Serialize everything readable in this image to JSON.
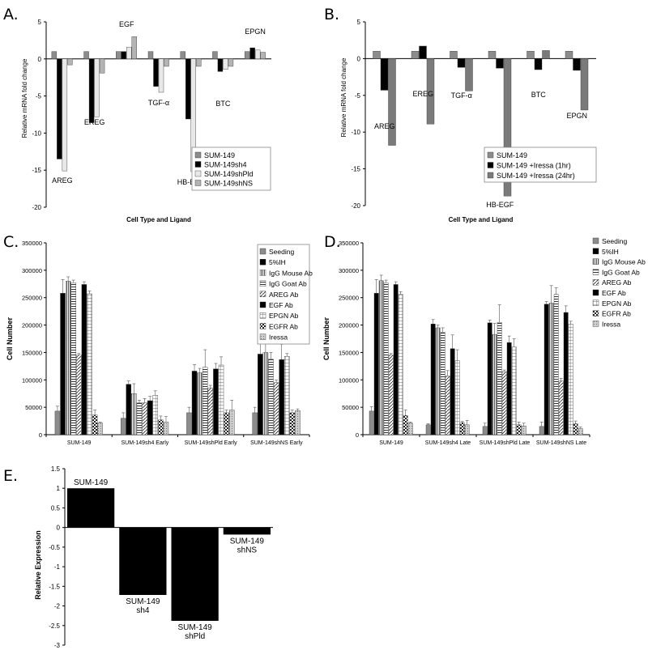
{
  "panels": {
    "A": {
      "letter": "A.",
      "chart_data": {
        "type": "bar",
        "ylabel": "Relative mRNA fold change",
        "xlabel": "Cell Type and Ligand",
        "ylim": [
          -20,
          5
        ],
        "yticks": [
          "5",
          "0",
          "-5",
          "-10",
          "-15",
          "-20"
        ],
        "categories": [
          "AREG",
          "EREG",
          "EGF",
          "TGF-α",
          "HB-EGF",
          "BTC",
          "EPGN"
        ],
        "series": [
          {
            "name": "SUM-149",
            "fill": "#8c8c8c",
            "values": [
              1,
              1,
              1,
              1,
              1,
              1,
              1
            ]
          },
          {
            "name": "SUM-149sh4",
            "fill": "#000000",
            "values": [
              -13.5,
              -8.6,
              1.0,
              -3.7,
              -8.1,
              -1.7,
              1.5
            ]
          },
          {
            "name": "SUM-149shPld",
            "fill": "#e8e8e8",
            "values": [
              -15.1,
              -7.8,
              1.6,
              -4.5,
              -15.2,
              -1.4,
              1.2
            ]
          },
          {
            "name": "SUM-149shNS",
            "fill": "#b4b4b4",
            "values": [
              -0.8,
              -1.9,
              3.0,
              -1.0,
              -1.0,
              -1.0,
              0.9
            ]
          }
        ],
        "category_labels": [
          "AREG",
          "EREG",
          "EGF",
          "TGF-α",
          "HB-EGF",
          "BTC",
          "EPGN"
        ],
        "legend": "bottom-right"
      }
    },
    "B": {
      "letter": "B.",
      "chart_data": {
        "type": "bar",
        "ylabel": "Relative mRNA fold change",
        "xlabel": "Cell Type and Ligand",
        "ylim": [
          -20,
          5
        ],
        "yticks": [
          "5",
          "0",
          "-5",
          "-10",
          "-15",
          "-20"
        ],
        "categories": [
          "AREG",
          "EREG",
          "TGF-α",
          "HB-EGF",
          "BTC",
          "EPGN"
        ],
        "series": [
          {
            "name": "SUM-149",
            "fill": "#8c8c8c",
            "values": [
              1,
              1,
              1,
              1,
              1,
              1
            ]
          },
          {
            "name": "SUM-149 +Iressa (1hr)",
            "fill": "#000000",
            "values": [
              -4.3,
              1.7,
              -1.2,
              -1.3,
              -1.5,
              -1.6
            ]
          },
          {
            "name": "SUM-149 +Iressa (24hr)",
            "fill": "#7a7a7a",
            "values": [
              -11.8,
              -8.9,
              -4.4,
              -18.7,
              1.1,
              -7.0
            ]
          }
        ],
        "category_labels": [
          "AREG",
          "EREG",
          "TGF-α",
          "HB-EGF",
          "BTC",
          "EPGN"
        ],
        "legend": "bottom-right"
      }
    },
    "C": {
      "letter": "C.",
      "chart_data": {
        "type": "bar",
        "ylabel": "Cell Number",
        "ylim": [
          0,
          350000
        ],
        "yticks": [
          "0",
          "50000",
          "100000",
          "150000",
          "200000",
          "250000",
          "300000",
          "350000"
        ],
        "categories": [
          "SUM-149",
          "SUM-149sh4 Early",
          "SUM-149shPld Early",
          "SUM-149shNS Early"
        ],
        "series": [
          {
            "name": "Seeding",
            "fill": "#8c8c8c",
            "values": [
              43000,
              30000,
              40000,
              40000
            ],
            "err": [
              9000,
              10000,
              10000,
              10000
            ]
          },
          {
            "name": "5%IH",
            "fill": "#000000",
            "values": [
              258000,
              92000,
              116000,
              147000
            ],
            "err": [
              25000,
              6000,
              12000,
              20000
            ]
          },
          {
            "name": "IgG Mouse Ab",
            "fill": "#f2f2f2",
            "values": [
              280000,
              75000,
              113000,
              150000
            ],
            "err": [
              8000,
              18000,
              8000,
              20000
            ]
          },
          {
            "name": "IgG Goat Ab",
            "fill": "#bdbdbd",
            "values": [
              277000,
              58000,
              123000,
              138000
            ],
            "err": [
              5000,
              5000,
              32000,
              12000
            ]
          },
          {
            "name": "AREG Ab",
            "fill": "#d0d0d0",
            "values": [
              145000,
              58000,
              85000,
              95000
            ],
            "err": [
              3000,
              8000,
              5000,
              5000
            ]
          },
          {
            "name": "EGF Ab",
            "fill": "#000000",
            "values": [
              274000,
              62000,
              120000,
              137000
            ],
            "err": [
              5000,
              8000,
              10000,
              28000
            ]
          },
          {
            "name": "EPGN Ab",
            "fill": "#ffffff",
            "values": [
              257000,
              72000,
              127000,
              143000
            ],
            "err": [
              5000,
              8000,
              15000,
              5000
            ]
          },
          {
            "name": "EGFR Ab",
            "fill": "#9a9a9a",
            "values": [
              36000,
              27000,
              40000,
              40000
            ],
            "err": [
              9000,
              7000,
              5000,
              5000
            ]
          },
          {
            "name": "Iressa",
            "fill": "#c4c4c4",
            "values": [
              21000,
              23000,
              45000,
              44000
            ],
            "err": [
              2000,
              10000,
              18000,
              3000
            ]
          }
        ],
        "legend": "top-right"
      }
    },
    "D": {
      "letter": "D.",
      "chart_data": {
        "type": "bar",
        "ylabel": "Cell Number",
        "ylim": [
          0,
          350000
        ],
        "yticks": [
          "0",
          "50000",
          "100000",
          "150000",
          "200000",
          "250000",
          "300000",
          "350000"
        ],
        "categories": [
          "SUM-149",
          "SUM-149sh4 Late",
          "SUM-149shPld Late",
          "SUM-149shNS Late"
        ],
        "series": [
          {
            "name": "Seeding",
            "fill": "#8c8c8c",
            "values": [
              43000,
              18000,
              15000,
              15000
            ],
            "err": [
              8000,
              2000,
              6000,
              8000
            ]
          },
          {
            "name": "5%IH",
            "fill": "#000000",
            "values": [
              258000,
              202000,
              204000,
              238000
            ],
            "err": [
              25000,
              8000,
              5000,
              5000
            ]
          },
          {
            "name": "IgG Mouse Ab",
            "fill": "#f2f2f2",
            "values": [
              281000,
              195000,
              183000,
              240000
            ],
            "err": [
              10000,
              5000,
              20000,
              32000
            ]
          },
          {
            "name": "IgG Goat Ab",
            "fill": "#bdbdbd",
            "values": [
              277000,
              187000,
              205000,
              256000
            ],
            "err": [
              5000,
              8000,
              32000,
              12000
            ]
          },
          {
            "name": "AREG Ab",
            "fill": "#d0d0d0",
            "values": [
              145000,
              107000,
              115000,
              98000
            ],
            "err": [
              3000,
              10000,
              3000,
              5000
            ]
          },
          {
            "name": "EGF Ab",
            "fill": "#000000",
            "values": [
              274000,
              157000,
              168000,
              223000
            ],
            "err": [
              5000,
              25000,
              12000,
              12000
            ]
          },
          {
            "name": "EPGN Ab",
            "fill": "#ffffff",
            "values": [
              256000,
              135000,
              160000,
              202000
            ],
            "err": [
              5000,
              20000,
              15000,
              5000
            ]
          },
          {
            "name": "EGFR Ab",
            "fill": "#9a9a9a",
            "values": [
              35000,
              22000,
              18000,
              20000
            ],
            "err": [
              10000,
              2000,
              5000,
              5000
            ]
          },
          {
            "name": "Iressa",
            "fill": "#c4c4c4",
            "values": [
              21000,
              18000,
              16000,
              11000
            ],
            "err": [
              2000,
              8000,
              5000,
              3000
            ]
          }
        ],
        "legend": "top-right"
      }
    },
    "E": {
      "letter": "E.",
      "chart_data": {
        "type": "bar",
        "ylabel": "Relative Expression",
        "ylim": [
          -3,
          1.5
        ],
        "yticks": [
          "1.5",
          "1",
          "0.5",
          "0",
          "-0.5",
          "-1",
          "-1.5",
          "-2",
          "-2.5",
          "-3"
        ],
        "categories": [
          "SUM-149",
          "SUM-149 sh4",
          "SUM-149 shPld",
          "SUM-149 shNS"
        ],
        "values": [
          1.0,
          -1.72,
          -2.38,
          -0.18
        ],
        "bar_labels": [
          [
            "SUM-149"
          ],
          [
            "SUM-149",
            "sh4"
          ],
          [
            "SUM-149",
            "shPld"
          ],
          [
            "SUM-149",
            "shNS"
          ]
        ],
        "fill": "#000000"
      }
    }
  }
}
